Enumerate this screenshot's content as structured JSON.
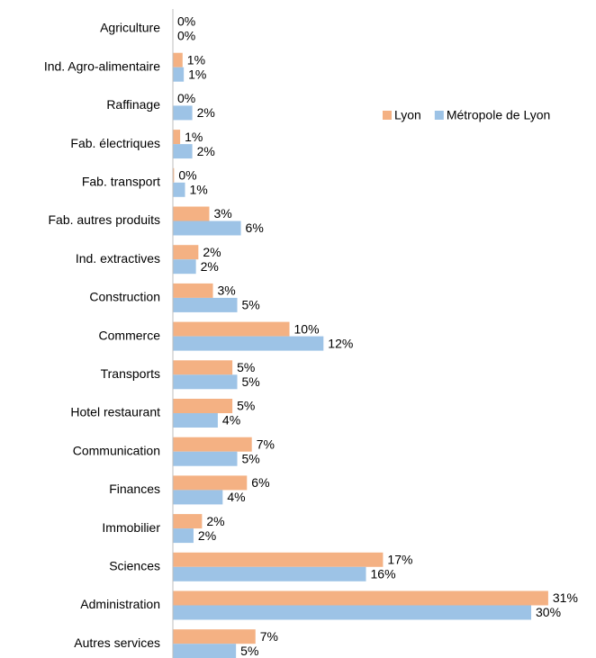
{
  "chart_data": {
    "type": "bar",
    "orientation": "horizontal",
    "categories": [
      "Agriculture",
      "Ind. Agro-alimentaire",
      "Raffinage",
      "Fab. électriques",
      "Fab. transport",
      "Fab. autres produits",
      "Ind. extractives",
      "Construction",
      "Commerce",
      "Transports",
      "Hotel restaurant",
      "Communication",
      "Finances",
      "Immobilier",
      "Sciences",
      "Administration",
      "Autres services"
    ],
    "series": [
      {
        "name": "Lyon",
        "color": "#f4b183",
        "values": [
          0,
          0.8,
          0,
          0.6,
          0.1,
          3.0,
          2.1,
          3.3,
          9.6,
          4.9,
          4.9,
          6.5,
          6.1,
          2.4,
          17.3,
          30.9,
          6.8
        ],
        "value_labels": [
          "0%",
          "1%",
          "0%",
          "1%",
          "0%",
          "3%",
          "2%",
          "3%",
          "10%",
          "5%",
          "5%",
          "7%",
          "6%",
          "2%",
          "17%",
          "31%",
          "7%"
        ]
      },
      {
        "name": "Métropole de Lyon",
        "color": "#9dc3e6",
        "values": [
          0,
          0.9,
          1.6,
          1.6,
          1.0,
          5.6,
          1.9,
          5.3,
          12.4,
          5.3,
          3.7,
          5.3,
          4.1,
          1.7,
          15.9,
          29.5,
          5.2
        ],
        "value_labels": [
          "0%",
          "1%",
          "2%",
          "2%",
          "1%",
          "6%",
          "2%",
          "5%",
          "12%",
          "5%",
          "4%",
          "5%",
          "4%",
          "2%",
          "16%",
          "30%",
          "5%"
        ]
      }
    ],
    "xlim": [
      0,
      31.5
    ],
    "legend": "top-right"
  }
}
